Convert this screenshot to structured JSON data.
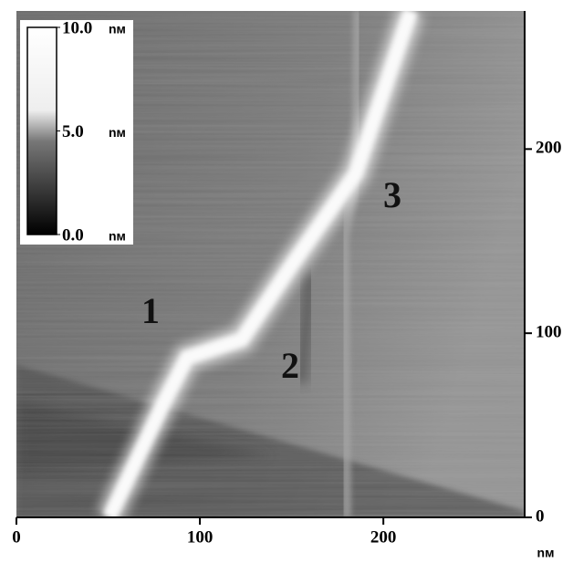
{
  "chart_data": {
    "type": "image",
    "xlim": [
      0,
      277
    ],
    "xticks": [
      0,
      100,
      200
    ],
    "x_unit": "nм",
    "ylim": [
      0,
      275
    ],
    "yticks": [
      0,
      100,
      200
    ],
    "colorbar": {
      "lim": [
        0,
        10
      ],
      "ticks": [
        {
          "value": 10,
          "label": "10.0"
        },
        {
          "value": 5,
          "label": "5.0"
        },
        {
          "value": 0,
          "label": "0.0"
        }
      ],
      "unit": "nм"
    },
    "annotations": [
      "1",
      "2",
      "3"
    ]
  }
}
